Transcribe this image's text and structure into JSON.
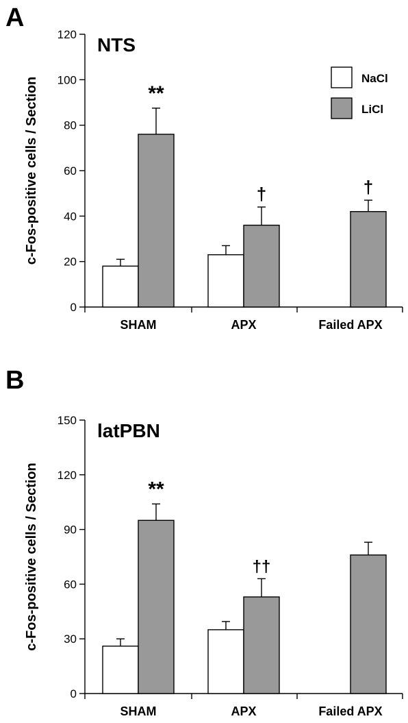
{
  "colors": {
    "nacl": "#ffffff",
    "licl": "#999999",
    "stroke": "#000000"
  },
  "chart_data": [
    {
      "type": "bar",
      "panel": "A",
      "title": "NTS",
      "ylabel": "c-Fos-positive cells / Section",
      "ylim": [
        0,
        120
      ],
      "yticks": [
        0,
        20,
        40,
        60,
        80,
        100,
        120
      ],
      "categories": [
        "SHAM",
        "APX",
        "Failed APX"
      ],
      "legend": {
        "position": "top-right",
        "entries": [
          "NaCl",
          "LiCl"
        ]
      },
      "series": [
        {
          "name": "NaCl",
          "values": [
            18,
            23,
            null
          ],
          "errors": [
            3,
            4,
            null
          ]
        },
        {
          "name": "LiCl",
          "values": [
            76,
            36,
            42
          ],
          "errors": [
            11.5,
            8,
            5
          ]
        }
      ],
      "annotations": [
        "**",
        "†",
        "†"
      ]
    },
    {
      "type": "bar",
      "panel": "B",
      "title": "latPBN",
      "ylabel": "c-Fos-positive cells / Section",
      "ylim": [
        0,
        150
      ],
      "yticks": [
        0,
        30,
        60,
        90,
        120,
        150
      ],
      "categories": [
        "SHAM",
        "APX",
        "Failed APX"
      ],
      "series": [
        {
          "name": "NaCl",
          "values": [
            26,
            35,
            null
          ],
          "errors": [
            4,
            4.5,
            null
          ]
        },
        {
          "name": "LiCl",
          "values": [
            95,
            53,
            76
          ],
          "errors": [
            9,
            10,
            7
          ]
        }
      ],
      "annotations": [
        "**",
        "††",
        ""
      ]
    }
  ]
}
